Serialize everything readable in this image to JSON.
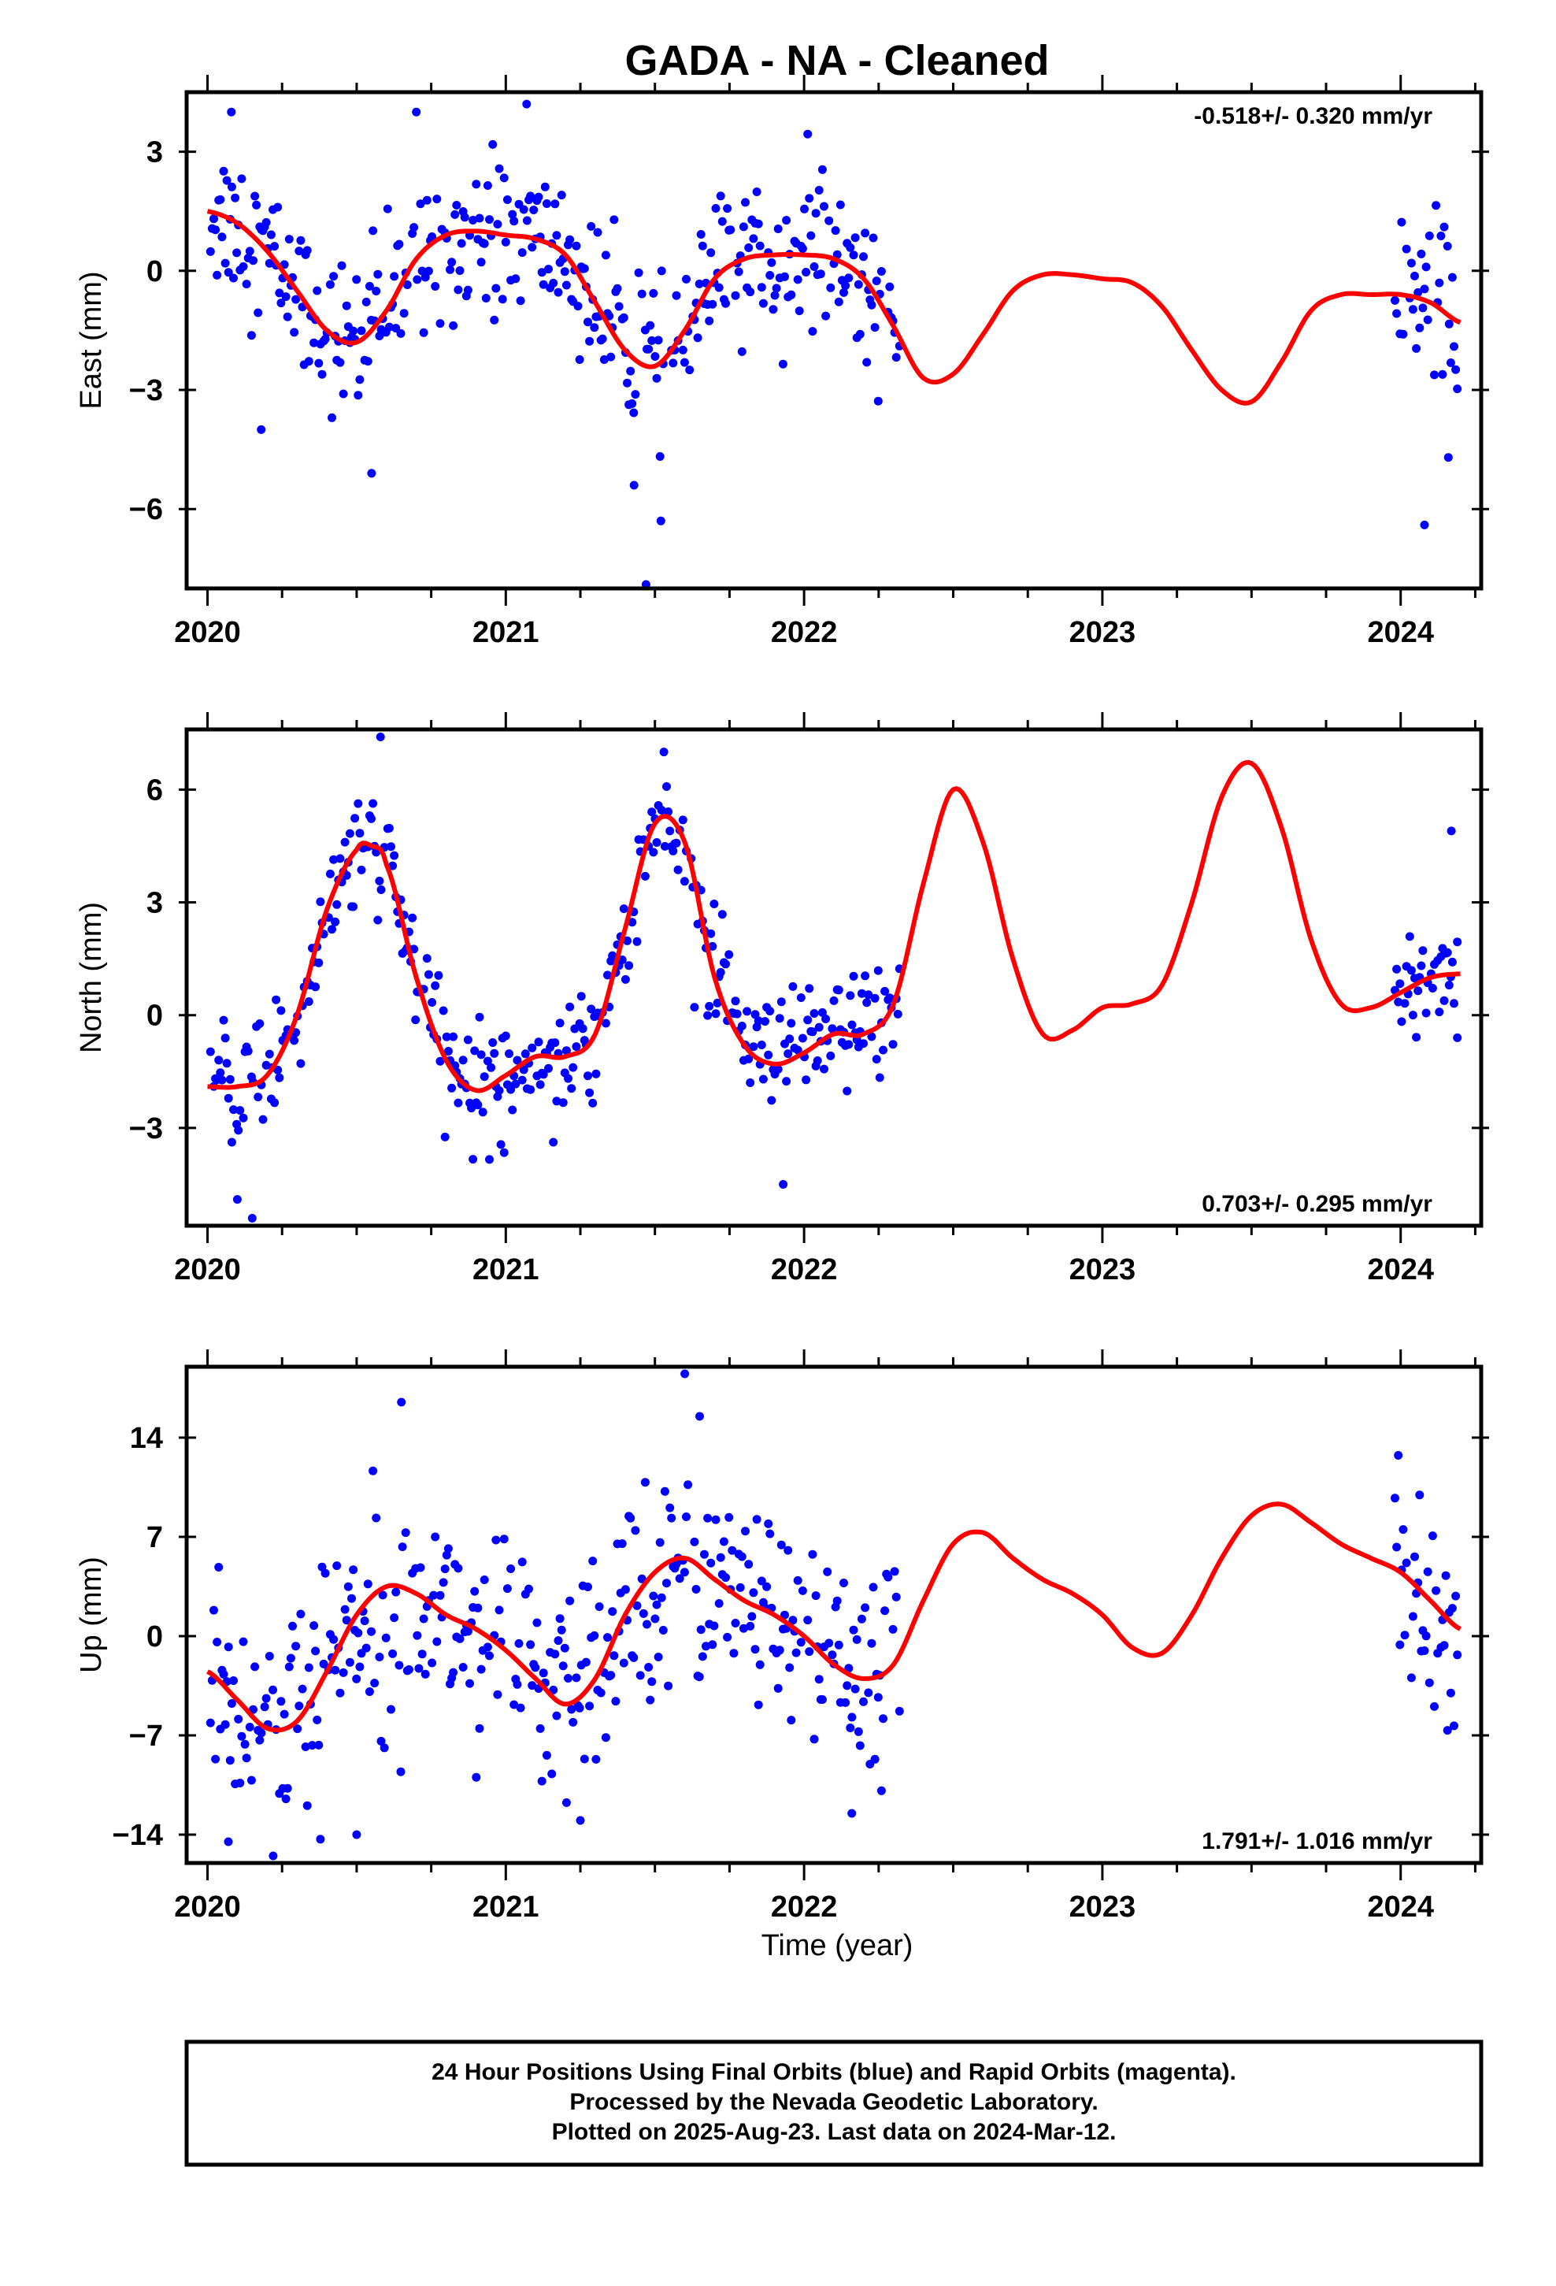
{
  "title": "GADA  - NA - Cleaned",
  "xlabel": "Time (year)",
  "footer": {
    "line1": "24 Hour Positions Using Final Orbits (blue) and Rapid Orbits (magenta).",
    "line2": "Processed by the Nevada Geodetic Laboratory.",
    "line3": "Plotted on 2025-Aug-23. Last data on 2024-Mar-12."
  },
  "colors": {
    "points": "#0000ff",
    "model": "#ff0000",
    "frame": "#000000"
  },
  "chart_data": [
    {
      "type": "scatter",
      "ylabel": "East (mm)",
      "rate": "-0.518+/- 0.320 mm/yr",
      "rate_position": "top-right",
      "xlim": [
        2019.93,
        2024.27
      ],
      "ylim": [
        -8.0,
        4.5
      ],
      "xticks": [
        2020,
        2021,
        2022,
        2023,
        2024
      ],
      "xtick_labels": [
        "2020",
        "2021",
        "2022",
        "2023",
        "2024"
      ],
      "yticks": [
        3,
        0,
        -3,
        -6
      ],
      "ytick_labels": [
        "3",
        "0",
        "−3",
        "−6"
      ],
      "model": {
        "x": [
          2020.0,
          2020.1,
          2020.2,
          2020.3,
          2020.4,
          2020.5,
          2020.6,
          2020.7,
          2020.8,
          2020.9,
          2021.0,
          2021.1,
          2021.2,
          2021.3,
          2021.4,
          2021.5,
          2021.6,
          2021.7,
          2021.8,
          2021.9,
          2022.0,
          2022.1,
          2022.2,
          2022.3,
          2022.4,
          2022.5,
          2022.6,
          2022.7,
          2022.8,
          2022.9,
          2023.0,
          2023.1,
          2023.2,
          2023.3,
          2023.4,
          2023.5,
          2023.6,
          2023.7,
          2023.8,
          2023.9,
          2024.0,
          2024.1,
          2024.2
        ],
        "y": [
          1.5,
          1.2,
          0.5,
          -0.5,
          -1.5,
          -1.8,
          -1.0,
          0.3,
          0.9,
          1.0,
          0.9,
          0.8,
          0.4,
          -0.8,
          -2.0,
          -2.4,
          -1.5,
          -0.2,
          0.3,
          0.4,
          0.4,
          0.3,
          -0.2,
          -1.4,
          -2.7,
          -2.6,
          -1.6,
          -0.5,
          -0.1,
          -0.1,
          -0.2,
          -0.3,
          -0.9,
          -2.0,
          -3.0,
          -3.3,
          -2.3,
          -1.0,
          -0.6,
          -0.6,
          -0.6,
          -0.8,
          -1.3
        ]
      },
      "obs_gap": [
        2022.32,
        2023.98
      ],
      "obs_last": 2024.19,
      "obs_noise": 0.95,
      "obs_outliers": [
        [
          2020.18,
          -4.0
        ],
        [
          2020.55,
          -5.1
        ],
        [
          2020.7,
          4.0
        ],
        [
          2021.07,
          4.2
        ],
        [
          2021.47,
          -7.9
        ],
        [
          2021.52,
          -6.3
        ],
        [
          2020.08,
          4.0
        ],
        [
          2024.08,
          -6.4
        ],
        [
          2024.16,
          -4.7
        ],
        [
          2021.43,
          -5.4
        ]
      ]
    },
    {
      "type": "scatter",
      "ylabel": "North (mm)",
      "rate": "0.703+/- 0.295 mm/yr",
      "rate_position": "bottom-right",
      "xlim": [
        2019.93,
        2024.27
      ],
      "ylim": [
        -5.6,
        7.6
      ],
      "xticks": [
        2020,
        2021,
        2022,
        2023,
        2024
      ],
      "xtick_labels": [
        "2020",
        "2021",
        "2022",
        "2023",
        "2024"
      ],
      "yticks": [
        6,
        3,
        0,
        -3
      ],
      "ytick_labels": [
        "6",
        "3",
        "0",
        "−3"
      ],
      "model": {
        "x": [
          2020.0,
          2020.1,
          2020.2,
          2020.3,
          2020.4,
          2020.5,
          2020.55,
          2020.6,
          2020.7,
          2020.8,
          2020.9,
          2021.0,
          2021.1,
          2021.2,
          2021.3,
          2021.4,
          2021.5,
          2021.6,
          2021.7,
          2021.8,
          2021.9,
          2022.0,
          2022.1,
          2022.2,
          2022.3,
          2022.4,
          2022.5,
          2022.6,
          2022.7,
          2022.8,
          2022.9,
          2023.0,
          2023.1,
          2023.2,
          2023.3,
          2023.4,
          2023.5,
          2023.6,
          2023.7,
          2023.8,
          2023.9,
          2024.0,
          2024.1,
          2024.2
        ],
        "y": [
          -1.9,
          -1.9,
          -1.6,
          0.0,
          2.8,
          4.4,
          4.5,
          4.0,
          1.0,
          -1.2,
          -2.0,
          -1.6,
          -1.1,
          -1.1,
          -0.5,
          2.3,
          5.1,
          4.6,
          1.0,
          -0.8,
          -1.3,
          -1.0,
          -0.5,
          -0.5,
          0.3,
          3.5,
          6.0,
          4.6,
          1.5,
          -0.5,
          -0.4,
          0.2,
          0.3,
          0.8,
          3.0,
          5.8,
          6.7,
          5.0,
          2.0,
          0.3,
          0.2,
          0.6,
          1.0,
          1.1
        ]
      },
      "obs_gap": [
        2022.32,
        2023.98
      ],
      "obs_last": 2024.19,
      "obs_noise": 0.8,
      "obs_outliers": [
        [
          2020.15,
          -5.4
        ],
        [
          2020.1,
          -4.9
        ],
        [
          2020.58,
          7.4
        ],
        [
          2021.53,
          7.0
        ],
        [
          2021.93,
          -4.5
        ],
        [
          2024.19,
          -0.6
        ],
        [
          2024.17,
          4.9
        ]
      ]
    },
    {
      "type": "scatter",
      "ylabel": "Up (mm)",
      "rate": "1.791+/- 1.016 mm/yr",
      "rate_position": "bottom-right",
      "xlim": [
        2019.93,
        2024.27
      ],
      "ylim": [
        -16.0,
        19.0
      ],
      "xticks": [
        2020,
        2021,
        2022,
        2023,
        2024
      ],
      "xtick_labels": [
        "2020",
        "2021",
        "2022",
        "2023",
        "2024"
      ],
      "yticks": [
        14,
        7,
        0,
        -7,
        -14
      ],
      "ytick_labels": [
        "14",
        "7",
        "0",
        "−7",
        "−14"
      ],
      "model": {
        "x": [
          2020.0,
          2020.1,
          2020.2,
          2020.3,
          2020.4,
          2020.5,
          2020.6,
          2020.7,
          2020.8,
          2020.9,
          2021.0,
          2021.1,
          2021.2,
          2021.3,
          2021.4,
          2021.5,
          2021.6,
          2021.7,
          2021.8,
          2021.9,
          2022.0,
          2022.1,
          2022.2,
          2022.3,
          2022.4,
          2022.5,
          2022.6,
          2022.7,
          2022.8,
          2022.9,
          2023.0,
          2023.1,
          2023.2,
          2023.3,
          2023.4,
          2023.5,
          2023.6,
          2023.7,
          2023.8,
          2023.9,
          2024.0,
          2024.1,
          2024.2
        ],
        "y": [
          -2.5,
          -4.5,
          -6.5,
          -6.0,
          -2.5,
          1.5,
          3.5,
          3.0,
          1.5,
          0.5,
          -1.0,
          -3.0,
          -4.8,
          -3.0,
          1.5,
          4.5,
          5.5,
          4.0,
          2.5,
          1.5,
          0.0,
          -2.0,
          -3.0,
          -2.0,
          2.5,
          6.5,
          7.3,
          5.5,
          4.0,
          3.0,
          1.5,
          -0.8,
          -1.2,
          1.5,
          5.5,
          8.5,
          9.3,
          8.0,
          6.5,
          5.5,
          4.5,
          2.5,
          0.5
        ]
      },
      "obs_gap": [
        2022.32,
        2023.98
      ],
      "obs_last": 2024.19,
      "obs_noise": 3.8,
      "obs_outliers": [
        [
          2020.65,
          16.5
        ],
        [
          2021.6,
          18.5
        ],
        [
          2021.65,
          15.5
        ],
        [
          2020.07,
          -14.5
        ],
        [
          2020.22,
          -15.5
        ],
        [
          2020.5,
          -14.0
        ],
        [
          2021.25,
          -13.0
        ],
        [
          2022.16,
          -12.5
        ]
      ]
    }
  ]
}
